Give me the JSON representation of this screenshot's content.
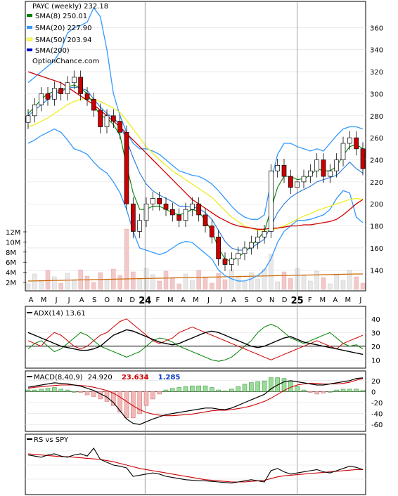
{
  "header": {
    "ticker_line": "PAYC (weekly) 232.18",
    "site": "OptionChance.com",
    "legend": [
      {
        "label": "SMA(8) 250.01",
        "color": "#008000"
      },
      {
        "label": "SMA(20) 227.90",
        "color": "#3399ff"
      },
      {
        "label": "SMA(50) 203.94",
        "color": "#ffff66"
      },
      {
        "label": "SMA(200)",
        "color": "#0000cc"
      }
    ]
  },
  "chart_data": [
    {
      "type": "candlestick",
      "title": "PAYC (weekly) 232.18",
      "ylim": [
        130,
        380
      ],
      "y_ticks": [
        140,
        160,
        180,
        200,
        220,
        240,
        260,
        280,
        300,
        320,
        340,
        360
      ],
      "x_labels": [
        "A",
        "M",
        "J",
        "J",
        "A",
        "S",
        "O",
        "N",
        "D",
        "24",
        "F",
        "M",
        "A",
        "M",
        "J",
        "J",
        "A",
        "S",
        "O",
        "N",
        "D",
        "25",
        "F",
        "M",
        "A",
        "M",
        "J"
      ],
      "volume_ticks": [
        "12M",
        "10M",
        "8M",
        "6M",
        "4M",
        "2M"
      ],
      "close": [
        280,
        290,
        300,
        295,
        305,
        300,
        310,
        315,
        300,
        295,
        285,
        270,
        280,
        275,
        265,
        200,
        175,
        185,
        200,
        205,
        200,
        195,
        190,
        185,
        195,
        200,
        190,
        180,
        170,
        150,
        145,
        150,
        155,
        160,
        165,
        170,
        175,
        230,
        235,
        225,
        215,
        220,
        225,
        230,
        240,
        225,
        230,
        240,
        255,
        260,
        250,
        232
      ],
      "sma8": [
        282,
        288,
        295,
        300,
        302,
        303,
        306,
        308,
        305,
        300,
        290,
        280,
        278,
        272,
        262,
        235,
        210,
        195,
        195,
        198,
        198,
        195,
        192,
        190,
        192,
        195,
        193,
        185,
        175,
        160,
        150,
        148,
        152,
        156,
        162,
        168,
        175,
        195,
        215,
        225,
        225,
        222,
        223,
        226,
        232,
        230,
        230,
        234,
        244,
        252,
        254,
        250
      ],
      "sma20": [
        280,
        285,
        290,
        295,
        300,
        302,
        305,
        306,
        305,
        303,
        295,
        288,
        282,
        278,
        272,
        258,
        242,
        228,
        218,
        212,
        208,
        205,
        202,
        198,
        198,
        197,
        196,
        192,
        186,
        176,
        166,
        160,
        158,
        158,
        160,
        164,
        168,
        180,
        192,
        200,
        206,
        210,
        213,
        216,
        220,
        222,
        224,
        226,
        232,
        238,
        232,
        228
      ],
      "sma50": [
        270,
        272,
        275,
        278,
        282,
        286,
        290,
        293,
        295,
        296,
        295,
        293,
        290,
        287,
        283,
        276,
        268,
        260,
        252,
        246,
        240,
        235,
        230,
        226,
        222,
        218,
        214,
        210,
        206,
        200,
        194,
        188,
        184,
        180,
        178,
        176,
        175,
        176,
        178,
        180,
        183,
        186,
        189,
        191,
        194,
        196,
        198,
        200,
        202,
        204,
        205,
        204
      ],
      "sma200": [
        320,
        318,
        316,
        314,
        312,
        310,
        306,
        302,
        298,
        294,
        290,
        285,
        280,
        275,
        270,
        264,
        258,
        252,
        246,
        240,
        234,
        228,
        222,
        216,
        210,
        204,
        200,
        196,
        192,
        188,
        185,
        182,
        180,
        179,
        178,
        177,
        177,
        178,
        178,
        179,
        180,
        180,
        181,
        181,
        182,
        183,
        184,
        186,
        190,
        195,
        200,
        204
      ],
      "bb_upper": [
        310,
        315,
        320,
        325,
        330,
        340,
        355,
        360,
        362,
        365,
        378,
        370,
        340,
        300,
        280,
        265,
        255,
        250,
        250,
        248,
        245,
        240,
        235,
        230,
        228,
        226,
        225,
        222,
        218,
        212,
        205,
        198,
        192,
        188,
        186,
        186,
        190,
        220,
        245,
        255,
        255,
        252,
        250,
        248,
        250,
        248,
        255,
        262,
        268,
        270,
        270,
        268
      ],
      "bb_lower": [
        255,
        258,
        262,
        265,
        268,
        265,
        258,
        250,
        248,
        245,
        238,
        232,
        228,
        220,
        210,
        195,
        175,
        160,
        158,
        156,
        154,
        156,
        160,
        164,
        166,
        165,
        160,
        155,
        150,
        140,
        135,
        132,
        130,
        130,
        132,
        135,
        140,
        150,
        165,
        175,
        180,
        185,
        185,
        186,
        188,
        190,
        195,
        205,
        212,
        210,
        188,
        183
      ]
    },
    {
      "type": "line",
      "title": "ADX(14) 13.61",
      "ylim": [
        5,
        45
      ],
      "y_ticks": [
        10,
        20,
        30,
        40
      ],
      "adx": [
        30,
        28,
        26,
        24,
        22,
        20,
        19,
        18,
        17,
        17,
        18,
        20,
        24,
        28,
        30,
        32,
        31,
        29,
        27,
        25,
        23,
        22,
        21,
        22,
        24,
        26,
        28,
        30,
        31,
        30,
        28,
        26,
        24,
        22,
        20,
        19,
        20,
        22,
        24,
        26,
        27,
        25,
        23,
        22,
        21,
        20,
        19,
        18,
        17,
        16,
        15,
        14
      ],
      "plus_di": [
        18,
        22,
        24,
        20,
        16,
        18,
        22,
        26,
        30,
        28,
        24,
        20,
        18,
        16,
        14,
        12,
        14,
        16,
        20,
        24,
        26,
        25,
        23,
        20,
        18,
        16,
        14,
        12,
        10,
        9,
        10,
        12,
        16,
        20,
        24,
        30,
        34,
        36,
        34,
        30,
        26,
        24,
        22,
        24,
        26,
        28,
        30,
        26,
        22,
        20,
        21,
        18
      ],
      "minus_di": [
        24,
        22,
        20,
        26,
        30,
        28,
        24,
        20,
        18,
        20,
        24,
        28,
        30,
        34,
        38,
        40,
        36,
        32,
        28,
        24,
        22,
        24,
        26,
        30,
        32,
        34,
        32,
        30,
        28,
        26,
        24,
        22,
        20,
        18,
        16,
        14,
        12,
        10,
        12,
        14,
        16,
        18,
        20,
        22,
        24,
        22,
        20,
        18,
        22,
        24,
        26,
        28
      ]
    },
    {
      "type": "bar",
      "title": "MACD(8,40,9)",
      "label_main": "24.920",
      "label_signal": "23.634",
      "label_hist": "1.285",
      "ylim": [
        -70,
        30
      ],
      "y_ticks": [
        20,
        0,
        -20,
        -40,
        -60
      ],
      "macd": [
        8,
        10,
        12,
        14,
        16,
        15,
        14,
        12,
        10,
        6,
        2,
        -4,
        -10,
        -20,
        -35,
        -50,
        -58,
        -60,
        -55,
        -50,
        -46,
        -42,
        -40,
        -38,
        -36,
        -34,
        -32,
        -30,
        -30,
        -32,
        -33,
        -30,
        -25,
        -20,
        -15,
        -10,
        -5,
        5,
        12,
        18,
        20,
        18,
        16,
        14,
        12,
        12,
        14,
        16,
        18,
        20,
        24,
        25
      ],
      "signal": [
        6,
        8,
        9,
        10,
        11,
        12,
        12,
        12,
        11,
        10,
        8,
        5,
        2,
        -3,
        -10,
        -18,
        -26,
        -33,
        -38,
        -41,
        -43,
        -44,
        -44,
        -43,
        -42,
        -41,
        -39,
        -37,
        -35,
        -34,
        -34,
        -33,
        -31,
        -29,
        -26,
        -22,
        -18,
        -12,
        -5,
        2,
        8,
        12,
        14,
        15,
        15,
        14,
        14,
        14,
        15,
        17,
        21,
        23.6
      ]
    },
    {
      "type": "line",
      "title": "RS vs SPY",
      "rs": [
        68,
        66,
        64,
        68,
        70,
        66,
        64,
        68,
        70,
        66,
        80,
        60,
        55,
        50,
        48,
        45,
        30,
        32,
        34,
        36,
        34,
        30,
        28,
        26,
        24,
        23,
        22,
        22,
        21,
        20,
        19,
        18,
        20,
        22,
        24,
        22,
        20,
        40,
        44,
        38,
        34,
        36,
        38,
        40,
        42,
        38,
        36,
        40,
        44,
        48,
        46,
        42
      ],
      "rs_ma": [
        70,
        69,
        68,
        67,
        66,
        65,
        65,
        64,
        63,
        62,
        61,
        60,
        58,
        56,
        53,
        50,
        47,
        44,
        42,
        40,
        38,
        36,
        34,
        32,
        30,
        28,
        26,
        24,
        23,
        22,
        21,
        20,
        20,
        20,
        21,
        22,
        23,
        26,
        29,
        31,
        32,
        33,
        34,
        35,
        36,
        37,
        38,
        39,
        40,
        41,
        42,
        42
      ]
    }
  ]
}
